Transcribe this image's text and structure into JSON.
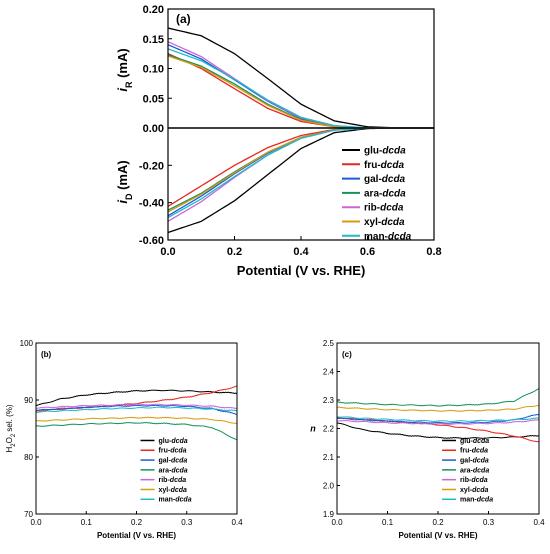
{
  "chart_data": [
    {
      "type": "line",
      "panel_label": "(a)",
      "xlabel": "Potential (V vs. RHE)",
      "xlim": [
        0.0,
        0.8
      ],
      "xticks": [
        "0.0",
        "0.2",
        "0.4",
        "0.6",
        "0.8"
      ],
      "grid": false,
      "legend_position": "lower-right",
      "subplots": [
        {
          "ylabel_main": "i",
          "ylabel_sub": "R",
          "ylabel_unit": "(mA)",
          "ylim": [
            0.0,
            0.2
          ],
          "yticks": [
            "0.00",
            "0.05",
            "0.10",
            "0.15",
            "0.20"
          ],
          "series": [
            {
              "name": "glu-dcda",
              "color": "#000000",
              "x": [
                0.0,
                0.1,
                0.2,
                0.3,
                0.4,
                0.5,
                0.6,
                0.7,
                0.8
              ],
              "y": [
                0.168,
                0.155,
                0.125,
                0.083,
                0.04,
                0.012,
                0.002,
                0.0,
                0.0
              ]
            },
            {
              "name": "fru-dcda",
              "color": "#e8261e",
              "x": [
                0.0,
                0.1,
                0.2,
                0.3,
                0.4,
                0.5,
                0.6,
                0.7,
                0.8
              ],
              "y": [
                0.125,
                0.1,
                0.066,
                0.033,
                0.011,
                0.002,
                0.0,
                0.0,
                0.0
              ]
            },
            {
              "name": "gal-dcda",
              "color": "#1a5bd6",
              "x": [
                0.0,
                0.1,
                0.2,
                0.3,
                0.4,
                0.5,
                0.6,
                0.7,
                0.8
              ],
              "y": [
                0.14,
                0.116,
                0.081,
                0.045,
                0.016,
                0.003,
                0.0,
                0.0,
                0.0
              ]
            },
            {
              "name": "ara-dcda",
              "color": "#16935a",
              "x": [
                0.0,
                0.1,
                0.2,
                0.3,
                0.4,
                0.5,
                0.6,
                0.7,
                0.8
              ],
              "y": [
                0.123,
                0.104,
                0.074,
                0.04,
                0.014,
                0.003,
                0.0,
                0.0,
                0.0
              ]
            },
            {
              "name": "rib-dcda",
              "color": "#c866d8",
              "x": [
                0.0,
                0.1,
                0.2,
                0.3,
                0.4,
                0.5,
                0.6,
                0.7,
                0.8
              ],
              "y": [
                0.145,
                0.12,
                0.083,
                0.046,
                0.017,
                0.004,
                0.0,
                0.0,
                0.0
              ]
            },
            {
              "name": "xyl-dcda",
              "color": "#d99a0e",
              "x": [
                0.0,
                0.1,
                0.2,
                0.3,
                0.4,
                0.5,
                0.6,
                0.7,
                0.8
              ],
              "y": [
                0.121,
                0.102,
                0.071,
                0.038,
                0.013,
                0.002,
                0.0,
                0.0,
                0.0
              ]
            },
            {
              "name": "man-dcda",
              "color": "#1fb8cc",
              "x": [
                0.0,
                0.1,
                0.2,
                0.3,
                0.4,
                0.5,
                0.6,
                0.7,
                0.8
              ],
              "y": [
                0.133,
                0.113,
                0.082,
                0.047,
                0.018,
                0.004,
                0.0,
                0.0,
                0.0
              ]
            }
          ]
        },
        {
          "ylabel_main": "i",
          "ylabel_sub": "D",
          "ylabel_unit": "(mA)",
          "ylim": [
            -0.6,
            0.0
          ],
          "yticks": [
            "-0.60",
            "-0.40",
            "-0.20",
            "0.00"
          ],
          "series": [
            {
              "name": "glu-dcda",
              "color": "#000000",
              "x": [
                0.0,
                0.1,
                0.2,
                0.3,
                0.4,
                0.5,
                0.6,
                0.7,
                0.8
              ],
              "y": [
                -0.56,
                -0.5,
                -0.39,
                -0.25,
                -0.11,
                -0.025,
                -0.003,
                0.0,
                0.0
              ]
            },
            {
              "name": "fru-dcda",
              "color": "#e8261e",
              "x": [
                0.0,
                0.1,
                0.2,
                0.3,
                0.4,
                0.5,
                0.6,
                0.7,
                0.8
              ],
              "y": [
                -0.42,
                -0.31,
                -0.2,
                -0.105,
                -0.04,
                -0.008,
                0.0,
                0.0,
                0.0
              ]
            },
            {
              "name": "gal-dcda",
              "color": "#1a5bd6",
              "x": [
                0.0,
                0.1,
                0.2,
                0.3,
                0.4,
                0.5,
                0.6,
                0.7,
                0.8
              ],
              "y": [
                -0.47,
                -0.365,
                -0.245,
                -0.135,
                -0.05,
                -0.01,
                0.0,
                0.0,
                0.0
              ]
            },
            {
              "name": "ara-dcda",
              "color": "#16935a",
              "x": [
                0.0,
                0.1,
                0.2,
                0.3,
                0.4,
                0.5,
                0.6,
                0.7,
                0.8
              ],
              "y": [
                -0.44,
                -0.35,
                -0.235,
                -0.13,
                -0.05,
                -0.01,
                0.0,
                0.0,
                0.0
              ]
            },
            {
              "name": "rib-dcda",
              "color": "#c866d8",
              "x": [
                0.0,
                0.1,
                0.2,
                0.3,
                0.4,
                0.5,
                0.6,
                0.7,
                0.8
              ],
              "y": [
                -0.5,
                -0.395,
                -0.265,
                -0.145,
                -0.055,
                -0.012,
                0.0,
                0.0,
                0.0
              ]
            },
            {
              "name": "xyl-dcda",
              "color": "#d99a0e",
              "x": [
                0.0,
                0.1,
                0.2,
                0.3,
                0.4,
                0.5,
                0.6,
                0.7,
                0.8
              ],
              "y": [
                -0.45,
                -0.355,
                -0.24,
                -0.13,
                -0.05,
                -0.01,
                0.0,
                0.0,
                0.0
              ]
            },
            {
              "name": "man-dcda",
              "color": "#1fb8cc",
              "x": [
                0.0,
                0.1,
                0.2,
                0.3,
                0.4,
                0.5,
                0.6,
                0.7,
                0.8
              ],
              "y": [
                -0.48,
                -0.38,
                -0.26,
                -0.145,
                -0.055,
                -0.012,
                0.0,
                0.0,
                0.0
              ]
            }
          ]
        }
      ]
    },
    {
      "type": "line",
      "panel_label": "(b)",
      "xlabel": "Potential (V vs. RHE)",
      "ylabel_main": "H",
      "ylabel_sub1": "2",
      "ylabel_mid": "O",
      "ylabel_sub2": "2",
      "ylabel_rest": " sel. (%)",
      "xlim": [
        0.0,
        0.4
      ],
      "ylim": [
        70,
        100
      ],
      "xticks": [
        "0.0",
        "0.1",
        "0.2",
        "0.3",
        "0.4"
      ],
      "yticks": [
        "70",
        "80",
        "90",
        "100"
      ],
      "grid": false,
      "legend_position": "lower-right",
      "series": [
        {
          "name": "glu-dcda",
          "color": "#000000",
          "x": [
            0.0,
            0.05,
            0.1,
            0.15,
            0.2,
            0.25,
            0.3,
            0.35,
            0.4
          ],
          "y": [
            89.0,
            90.2,
            90.9,
            91.3,
            91.6,
            91.7,
            91.6,
            91.4,
            91.2
          ]
        },
        {
          "name": "fru-dcda",
          "color": "#e8261e",
          "x": [
            0.0,
            0.05,
            0.1,
            0.15,
            0.2,
            0.25,
            0.3,
            0.35,
            0.4
          ],
          "y": [
            88.1,
            88.4,
            88.7,
            89.0,
            89.4,
            89.9,
            90.5,
            91.3,
            92.4
          ]
        },
        {
          "name": "gal-dcda",
          "color": "#1a5bd6",
          "x": [
            0.0,
            0.05,
            0.1,
            0.15,
            0.2,
            0.25,
            0.3,
            0.35,
            0.4
          ],
          "y": [
            88.2,
            88.5,
            88.7,
            88.9,
            89.0,
            89.0,
            88.9,
            88.5,
            87.5
          ]
        },
        {
          "name": "ara-dcda",
          "color": "#16935a",
          "x": [
            0.0,
            0.05,
            0.1,
            0.15,
            0.2,
            0.25,
            0.3,
            0.35,
            0.4
          ],
          "y": [
            85.4,
            85.6,
            85.8,
            85.9,
            86.0,
            85.9,
            85.7,
            85.2,
            83.0
          ]
        },
        {
          "name": "rib-dcda",
          "color": "#c866d8",
          "x": [
            0.0,
            0.05,
            0.1,
            0.15,
            0.2,
            0.25,
            0.3,
            0.35,
            0.4
          ],
          "y": [
            88.6,
            88.8,
            89.0,
            89.1,
            89.2,
            89.2,
            89.1,
            88.9,
            88.5
          ]
        },
        {
          "name": "xyl-dcda",
          "color": "#d99a0e",
          "x": [
            0.0,
            0.05,
            0.1,
            0.15,
            0.2,
            0.25,
            0.3,
            0.35,
            0.4
          ],
          "y": [
            86.3,
            86.5,
            86.7,
            86.8,
            86.9,
            86.9,
            86.8,
            86.6,
            85.9
          ]
        },
        {
          "name": "man-dcda",
          "color": "#1fb8cc",
          "x": [
            0.0,
            0.05,
            0.1,
            0.15,
            0.2,
            0.25,
            0.3,
            0.35,
            0.4
          ],
          "y": [
            87.9,
            88.1,
            88.3,
            88.5,
            88.6,
            88.7,
            88.6,
            88.4,
            88.1
          ]
        }
      ]
    },
    {
      "type": "line",
      "panel_label": "(c)",
      "xlabel": "Potential (V vs. RHE)",
      "ylabel_main": "n",
      "xlim": [
        0.0,
        0.4
      ],
      "ylim": [
        1.9,
        2.5
      ],
      "xticks": [
        "0.0",
        "0.1",
        "0.2",
        "0.3",
        "0.4"
      ],
      "yticks": [
        "1.9",
        "2.0",
        "2.1",
        "2.2",
        "2.3",
        "2.4",
        "2.5"
      ],
      "grid": false,
      "legend_position": "lower-right",
      "series": [
        {
          "name": "glu-dcda",
          "color": "#000000",
          "x": [
            0.0,
            0.05,
            0.1,
            0.15,
            0.2,
            0.25,
            0.3,
            0.35,
            0.4
          ],
          "y": [
            2.22,
            2.196,
            2.183,
            2.174,
            2.168,
            2.166,
            2.167,
            2.17,
            2.175
          ]
        },
        {
          "name": "fru-dcda",
          "color": "#e8261e",
          "x": [
            0.0,
            0.05,
            0.1,
            0.15,
            0.2,
            0.25,
            0.3,
            0.35,
            0.4
          ],
          "y": [
            2.238,
            2.232,
            2.226,
            2.22,
            2.213,
            2.203,
            2.19,
            2.174,
            2.152
          ]
        },
        {
          "name": "gal-dcda",
          "color": "#1a5bd6",
          "x": [
            0.0,
            0.05,
            0.1,
            0.15,
            0.2,
            0.25,
            0.3,
            0.35,
            0.4
          ],
          "y": [
            2.236,
            2.23,
            2.226,
            2.222,
            2.22,
            2.22,
            2.222,
            2.23,
            2.25
          ]
        },
        {
          "name": "ara-dcda",
          "color": "#16935a",
          "x": [
            0.0,
            0.05,
            0.1,
            0.15,
            0.2,
            0.25,
            0.3,
            0.35,
            0.4
          ],
          "y": [
            2.292,
            2.288,
            2.284,
            2.282,
            2.28,
            2.282,
            2.286,
            2.296,
            2.34
          ]
        },
        {
          "name": "rib-dcda",
          "color": "#c866d8",
          "x": [
            0.0,
            0.05,
            0.1,
            0.15,
            0.2,
            0.25,
            0.3,
            0.35,
            0.4
          ],
          "y": [
            2.228,
            2.224,
            2.22,
            2.218,
            2.216,
            2.216,
            2.218,
            2.222,
            2.23
          ]
        },
        {
          "name": "xyl-dcda",
          "color": "#d99a0e",
          "x": [
            0.0,
            0.05,
            0.1,
            0.15,
            0.2,
            0.25,
            0.3,
            0.35,
            0.4
          ],
          "y": [
            2.274,
            2.27,
            2.266,
            2.264,
            2.262,
            2.262,
            2.264,
            2.268,
            2.282
          ]
        },
        {
          "name": "man-dcda",
          "color": "#1fb8cc",
          "x": [
            0.0,
            0.05,
            0.1,
            0.15,
            0.2,
            0.25,
            0.3,
            0.35,
            0.4
          ],
          "y": [
            2.242,
            2.236,
            2.232,
            2.228,
            2.226,
            2.226,
            2.228,
            2.23,
            2.236
          ]
        }
      ]
    }
  ]
}
